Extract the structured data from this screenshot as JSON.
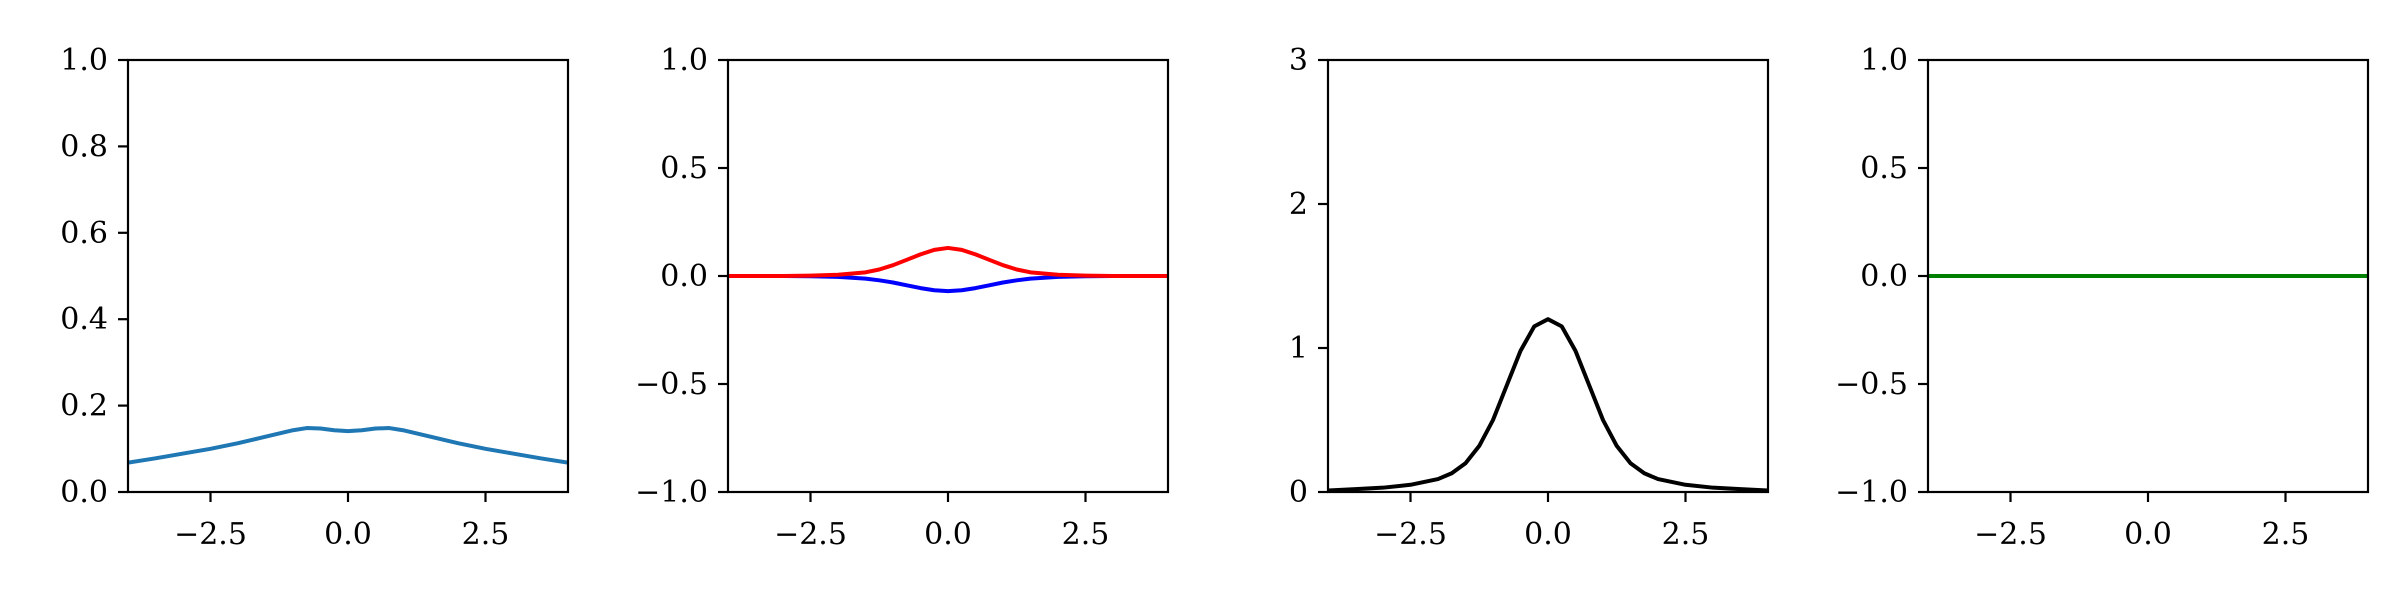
{
  "chart_data": [
    {
      "type": "line",
      "xlim": [
        -4,
        4
      ],
      "ylim": [
        0,
        1
      ],
      "grid": false,
      "x_ticks": [
        -2.5,
        0.0,
        2.5
      ],
      "x_tick_labels": [
        "−2.5",
        "0.0",
        "2.5"
      ],
      "y_ticks": [
        0,
        0.2,
        0.4,
        0.6,
        0.8,
        1.0
      ],
      "y_tick_labels": [
        "0.0",
        "0.2",
        "0.4",
        "0.6",
        "0.8",
        "1.0"
      ],
      "series": [
        {
          "color": "#1f77b4",
          "x": [
            -4,
            -3.5,
            -3,
            -2.5,
            -2,
            -1.5,
            -1,
            -0.75,
            -0.5,
            -0.25,
            0,
            0.25,
            0.5,
            0.75,
            1,
            1.5,
            2,
            2.5,
            3,
            3.5,
            4
          ],
          "y": [
            0.068,
            0.078,
            0.089,
            0.1,
            0.113,
            0.128,
            0.143,
            0.148,
            0.147,
            0.143,
            0.141,
            0.143,
            0.147,
            0.148,
            0.143,
            0.128,
            0.113,
            0.1,
            0.089,
            0.078,
            0.068
          ]
        }
      ]
    },
    {
      "type": "line",
      "xlim": [
        -4,
        4
      ],
      "ylim": [
        -1,
        1
      ],
      "grid": false,
      "x_ticks": [
        -2.5,
        0.0,
        2.5
      ],
      "x_tick_labels": [
        "−2.5",
        "0.0",
        "2.5"
      ],
      "y_ticks": [
        -1,
        -0.5,
        0,
        0.5,
        1
      ],
      "y_tick_labels": [
        "−1.0",
        "−0.5",
        "0.0",
        "0.5",
        "1.0"
      ],
      "series": [
        {
          "color": "#0000ff",
          "x": [
            -4,
            -3,
            -2.5,
            -2,
            -1.5,
            -1.25,
            -1,
            -0.75,
            -0.5,
            -0.25,
            0,
            0.25,
            0.5,
            0.75,
            1,
            1.25,
            1.5,
            2,
            2.5,
            3,
            4
          ],
          "y": [
            0,
            0,
            -0.001,
            -0.004,
            -0.012,
            -0.02,
            -0.03,
            -0.043,
            -0.056,
            -0.066,
            -0.07,
            -0.066,
            -0.056,
            -0.043,
            -0.03,
            -0.02,
            -0.012,
            -0.004,
            -0.001,
            0,
            0
          ]
        },
        {
          "color": "#ff0000",
          "x": [
            -4,
            -3,
            -2.5,
            -2,
            -1.5,
            -1.25,
            -1,
            -0.75,
            -0.5,
            -0.25,
            0,
            0.25,
            0.5,
            0.75,
            1,
            1.25,
            1.5,
            2,
            2.5,
            3,
            4
          ],
          "y": [
            0,
            0,
            0.002,
            0.006,
            0.017,
            0.03,
            0.05,
            0.075,
            0.1,
            0.121,
            0.13,
            0.121,
            0.1,
            0.075,
            0.05,
            0.03,
            0.017,
            0.006,
            0.002,
            0,
            0
          ]
        }
      ]
    },
    {
      "type": "line",
      "xlim": [
        -4,
        4
      ],
      "ylim": [
        0,
        3
      ],
      "grid": false,
      "x_ticks": [
        -2.5,
        0.0,
        2.5
      ],
      "x_tick_labels": [
        "−2.5",
        "0.0",
        "2.5"
      ],
      "y_ticks": [
        0,
        1,
        2,
        3
      ],
      "y_tick_labels": [
        "0",
        "1",
        "2",
        "3"
      ],
      "series": [
        {
          "color": "#000000",
          "x": [
            -4,
            -3.5,
            -3,
            -2.5,
            -2,
            -1.75,
            -1.5,
            -1.25,
            -1,
            -0.75,
            -0.5,
            -0.25,
            0,
            0.25,
            0.5,
            0.75,
            1,
            1.25,
            1.5,
            1.75,
            2,
            2.5,
            3,
            3.5,
            4
          ],
          "y": [
            0.01,
            0.02,
            0.03,
            0.05,
            0.09,
            0.13,
            0.2,
            0.32,
            0.5,
            0.74,
            0.98,
            1.15,
            1.2,
            1.15,
            0.98,
            0.74,
            0.5,
            0.32,
            0.2,
            0.13,
            0.09,
            0.05,
            0.03,
            0.02,
            0.01
          ]
        }
      ]
    },
    {
      "type": "line",
      "xlim": [
        -4,
        4
      ],
      "ylim": [
        -1,
        1
      ],
      "grid": false,
      "x_ticks": [
        -2.5,
        0.0,
        2.5
      ],
      "x_tick_labels": [
        "−2.5",
        "0.0",
        "2.5"
      ],
      "y_ticks": [
        -1,
        -0.5,
        0,
        0.5,
        1
      ],
      "y_tick_labels": [
        "−1.0",
        "−0.5",
        "0.0",
        "0.5",
        "1.0"
      ],
      "series": [
        {
          "color": "#008000",
          "x": [
            -4,
            4
          ],
          "y": [
            0,
            0
          ]
        }
      ]
    }
  ]
}
